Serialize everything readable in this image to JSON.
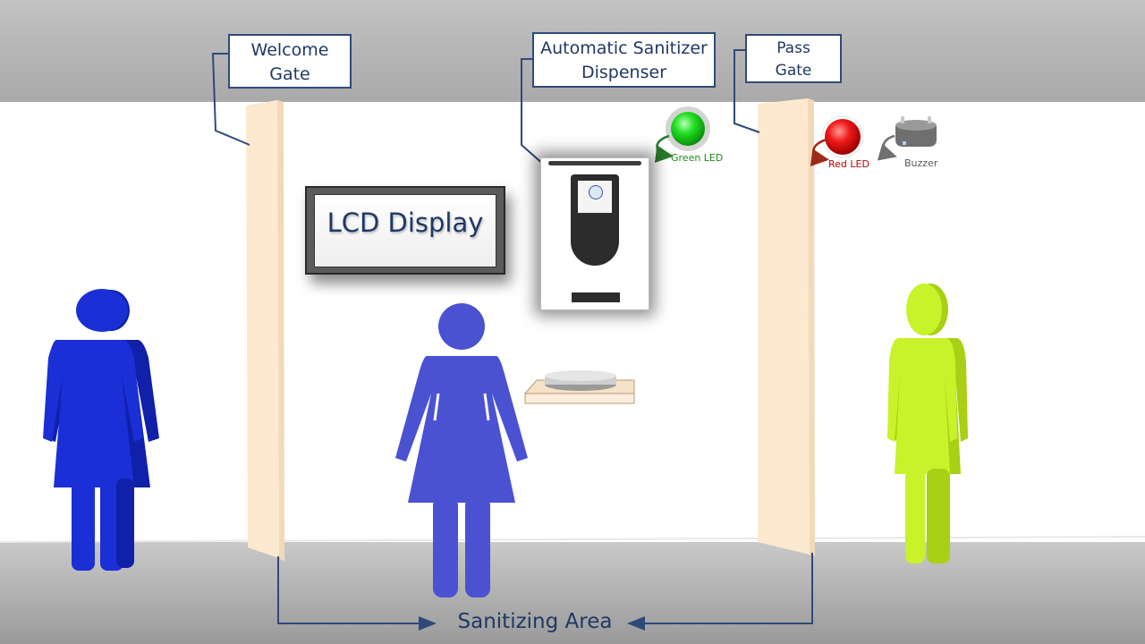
{
  "callouts": {
    "welcome_gate": {
      "line1": "Welcome",
      "line2": "Gate"
    },
    "dispenser": {
      "line1": "Automatic Sanitizer",
      "line2": "Dispenser"
    },
    "pass_gate": {
      "line1": "Pass",
      "line2": "Gate"
    }
  },
  "lcd": {
    "text": "LCD Display"
  },
  "devices": {
    "green_led": {
      "label": "Green LED",
      "color": "#1fd61f"
    },
    "red_led": {
      "label": "Red LED",
      "color": "#e01010"
    },
    "buzzer": {
      "label": "Buzzer"
    }
  },
  "area": {
    "label": "Sanitizing Area"
  },
  "colors": {
    "callout_border": "#2f4a7a",
    "callout_text": "#1f3864",
    "gate": "#fde9cf",
    "person_left": "#1a2fd6",
    "person_middle": "#4a52d2",
    "person_right": "#c8f22a",
    "green_label": "#1a8a1a",
    "red_label": "#c00000",
    "buzzer_label": "#595959"
  }
}
